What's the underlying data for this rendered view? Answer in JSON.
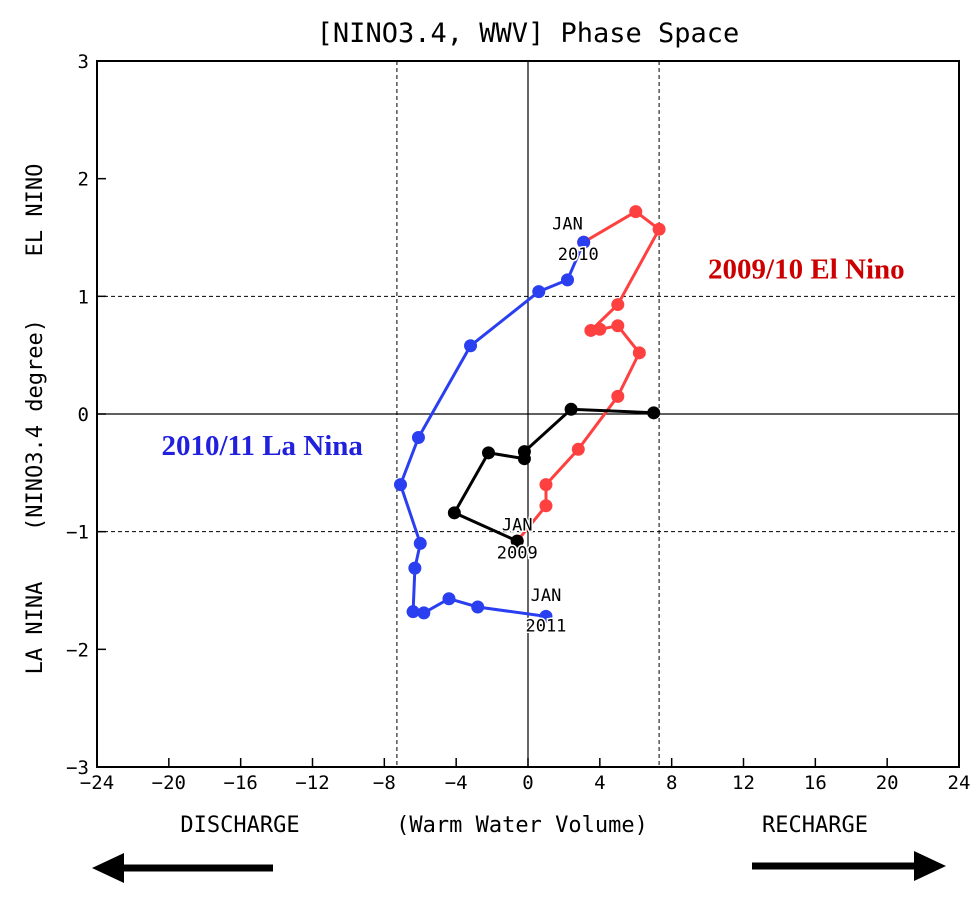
{
  "chart_data": {
    "type": "line",
    "title": "[NINO3.4, WWV] Phase Space",
    "xlabel": "(Warm Water Volume)",
    "x_left_label": "DISCHARGE",
    "x_right_label": "RECHARGE",
    "ylabel": "(NINO3.4 degree)",
    "y_top_label": "EL NINO",
    "y_bottom_label": "LA NINA",
    "xlim": [
      -24,
      24
    ],
    "ylim": [
      -3,
      3
    ],
    "x_ticks": [
      -24,
      -20,
      -16,
      -12,
      -8,
      -4,
      0,
      4,
      8,
      12,
      16,
      20,
      24
    ],
    "y_ticks": [
      -3,
      -2,
      -1,
      0,
      1,
      2,
      3
    ],
    "reference_lines": {
      "x": [
        -7.3,
        7.3
      ],
      "y": [
        -1,
        1
      ],
      "solid_x": 0,
      "solid_y": 0
    },
    "series": [
      {
        "name": "2009/10 El Nino",
        "color": "#ff4040",
        "points": [
          [
            -0.6,
            -1.08
          ],
          [
            1.0,
            -0.78
          ],
          [
            1.0,
            -0.6
          ],
          [
            2.8,
            -0.3
          ],
          [
            5.0,
            0.15
          ],
          [
            6.2,
            0.52
          ],
          [
            5.0,
            0.75
          ],
          [
            4.0,
            0.72
          ],
          [
            3.5,
            0.71
          ],
          [
            5.0,
            0.93
          ],
          [
            7.3,
            1.57
          ],
          [
            6.0,
            1.72
          ],
          [
            3.1,
            1.46
          ]
        ]
      },
      {
        "name": "2010/11 La Nina",
        "color": "#2a3ff0",
        "points": [
          [
            3.1,
            1.46
          ],
          [
            2.2,
            1.14
          ],
          [
            0.6,
            1.04
          ],
          [
            -3.2,
            0.58
          ],
          [
            -6.1,
            -0.2
          ],
          [
            -7.1,
            -0.6
          ],
          [
            -6.0,
            -1.1
          ],
          [
            -6.3,
            -1.31
          ],
          [
            -6.4,
            -1.68
          ],
          [
            -5.8,
            -1.69
          ],
          [
            -4.4,
            -1.57
          ],
          [
            -2.8,
            -1.64
          ],
          [
            1.0,
            -1.72
          ]
        ]
      },
      {
        "name": "",
        "color": "#000000",
        "points": [
          [
            7.0,
            0.01
          ],
          [
            2.4,
            0.04
          ],
          [
            -0.2,
            -0.32
          ],
          [
            -0.2,
            -0.38
          ],
          [
            -2.2,
            -0.33
          ],
          [
            -4.1,
            -0.84
          ],
          [
            -0.6,
            -1.08
          ]
        ]
      }
    ],
    "annotations": [
      {
        "text": "JAN",
        "x": 2.2,
        "y": 1.57,
        "series": 1
      },
      {
        "text": "2010",
        "x": 2.8,
        "y": 1.31,
        "series": 1
      },
      {
        "text": "JAN",
        "x": -0.6,
        "y": -0.99,
        "series": 2
      },
      {
        "text": "2009",
        "x": -0.6,
        "y": -1.23,
        "series": 2
      },
      {
        "text": "JAN",
        "x": 1.0,
        "y": -1.59,
        "series": 1
      },
      {
        "text": "2011",
        "x": 1.0,
        "y": -1.85,
        "series": 1
      }
    ],
    "series_labels": [
      {
        "text": "2009/10 El Nino",
        "color": "#cc0000",
        "x": 15.5,
        "y": 1.15
      },
      {
        "text": "2010/11 La Nina",
        "color": "#2020dd",
        "x": -14.8,
        "y": -0.35
      }
    ],
    "arrows": [
      "left",
      "right"
    ]
  }
}
